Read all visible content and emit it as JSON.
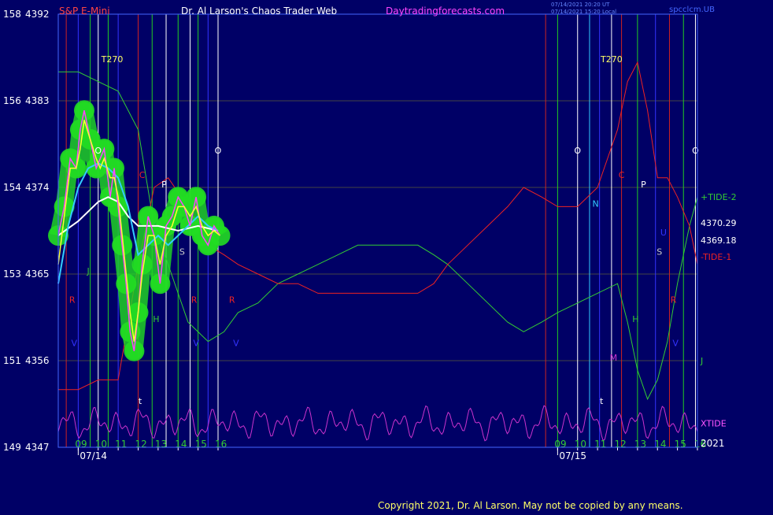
{
  "header": {
    "symbol": "S&P E-Mini",
    "title": "Dr. Al Larson's Chaos Trader Web",
    "site": "Daytradingforecasts.com",
    "timestamp1": "07/14/2021 20:20 UT",
    "timestamp2": "07/14/2021 15:20 Local",
    "file": "spcclcm.UB"
  },
  "footer": {
    "copyright": "Copyright 2021, Dr. Al Larson. May not be copied by any means."
  },
  "colors": {
    "background": "#000066",
    "price_ribbon": "#22dd22",
    "price_line": "#ff44ff",
    "fast_avg": "#ffff33",
    "mid_avg": "#33ccff",
    "slow_avg": "#ffffff",
    "tide_upper": "#33cc33",
    "tide_lower": "#ee2222",
    "xtide": "#cc33cc",
    "envelope": "#2222ff"
  },
  "chart_data": {
    "type": "line",
    "title": "S&P E-Mini",
    "y_axis_left_ticks": [
      "158",
      "156",
      "154",
      "153",
      "151",
      "149"
    ],
    "y_axis_price_ticks": [
      4392,
      4383,
      4374,
      4365,
      4356,
      4347
    ],
    "ylim": [
      4347,
      4392
    ],
    "x_tick_labels": [
      "09",
      "10",
      "11",
      "12",
      "13",
      "14",
      "15",
      "16",
      "09",
      "10",
      "11",
      "12",
      "13",
      "14",
      "15",
      "16"
    ],
    "x_ticks_hour": [
      9,
      10,
      11,
      12,
      13,
      14,
      15,
      16,
      33,
      34,
      35,
      36,
      37,
      38,
      39,
      40
    ],
    "date_labels": [
      "07/14",
      "07/15"
    ],
    "date_positions_hour": [
      9,
      33
    ],
    "year_label": "2021",
    "xlim_hour": [
      8.0,
      40.0
    ],
    "right_labels": [
      {
        "text": "+TIDE-2",
        "price": 4373,
        "color": "#33cc33"
      },
      {
        "text": "4370.29",
        "price": 4370.3,
        "color": "#ffffff"
      },
      {
        "text": "4369.18",
        "price": 4368.5,
        "color": "#ffffff"
      },
      {
        "text": "-TIDE-1",
        "price": 4366.8,
        "color": "#ee2222"
      },
      {
        "text": "J",
        "price": 4356,
        "color": "#33cc33"
      },
      {
        "text": "XTIDE",
        "price": 4349.5,
        "color": "#ff55ff"
      }
    ],
    "markers": [
      {
        "text": "T270",
        "hour": 10.7,
        "price": 4387,
        "color": "#ffff66"
      },
      {
        "text": "T270",
        "hour": 35.7,
        "price": 4387,
        "color": "#ffff66"
      },
      {
        "text": "O",
        "hour": 10.0,
        "price": 4377.5,
        "color": "#ffffff"
      },
      {
        "text": "O",
        "hour": 16.0,
        "price": 4377.5,
        "color": "#ffffff"
      },
      {
        "text": "O",
        "hour": 34.0,
        "price": 4377.5,
        "color": "#ffffff"
      },
      {
        "text": "O",
        "hour": 39.9,
        "price": 4377.5,
        "color": "#ffffff"
      },
      {
        "text": "C",
        "hour": 12.2,
        "price": 4375,
        "color": "#ee2222"
      },
      {
        "text": "C",
        "hour": 36.2,
        "price": 4375,
        "color": "#ee2222"
      },
      {
        "text": "P",
        "hour": 13.3,
        "price": 4374,
        "color": "#ffffff"
      },
      {
        "text": "P",
        "hour": 37.3,
        "price": 4374,
        "color": "#ffffff"
      },
      {
        "text": "N",
        "hour": 34.9,
        "price": 4372,
        "color": "#33ccff"
      },
      {
        "text": "U",
        "hour": 38.3,
        "price": 4369,
        "color": "#3333ff"
      },
      {
        "text": "S",
        "hour": 14.2,
        "price": 4367,
        "color": "#cccccc"
      },
      {
        "text": "S",
        "hour": 38.1,
        "price": 4367,
        "color": "#cccccc"
      },
      {
        "text": "J",
        "hour": 9.5,
        "price": 4365,
        "color": "#33cc33"
      },
      {
        "text": "R",
        "hour": 8.7,
        "price": 4362,
        "color": "#ee2222"
      },
      {
        "text": "R",
        "hour": 14.8,
        "price": 4362,
        "color": "#ee2222"
      },
      {
        "text": "R",
        "hour": 16.7,
        "price": 4362,
        "color": "#ee2222"
      },
      {
        "text": "R",
        "hour": 38.8,
        "price": 4362,
        "color": "#ee2222"
      },
      {
        "text": "H",
        "hour": 12.9,
        "price": 4360,
        "color": "#33cc33"
      },
      {
        "text": "H",
        "hour": 36.9,
        "price": 4360,
        "color": "#33cc33"
      },
      {
        "text": "V",
        "hour": 8.8,
        "price": 4357.5,
        "color": "#3333ff"
      },
      {
        "text": "V",
        "hour": 14.9,
        "price": 4357.5,
        "color": "#3333ff"
      },
      {
        "text": "V",
        "hour": 16.9,
        "price": 4357.5,
        "color": "#3333ff"
      },
      {
        "text": "V",
        "hour": 38.9,
        "price": 4357.5,
        "color": "#3333ff"
      },
      {
        "text": "M",
        "hour": 35.8,
        "price": 4356,
        "color": "#cc33cc"
      },
      {
        "text": "t",
        "hour": 12.1,
        "price": 4351.5,
        "color": "#ffffff"
      },
      {
        "text": "t",
        "hour": 35.2,
        "price": 4351.5,
        "color": "#ffffff"
      }
    ],
    "series": [
      {
        "type": "price",
        "x_hour": [
          8.0,
          8.3,
          8.6,
          8.9,
          9.1,
          9.3,
          9.6,
          9.9,
          10.1,
          10.3,
          10.6,
          10.8,
          11.0,
          11.2,
          11.4,
          11.6,
          11.8,
          12.0,
          12.2,
          12.5,
          12.8,
          13.1,
          13.4,
          13.7,
          14.0,
          14.3,
          14.6,
          14.9,
          15.2,
          15.5,
          15.8,
          16.1
        ],
        "values": [
          4369,
          4372,
          4377,
          4376,
          4380,
          4382,
          4379,
          4376,
          4377,
          4378,
          4373,
          4376,
          4372,
          4368,
          4364,
          4359,
          4357,
          4361,
          4366,
          4371,
          4369,
          4364,
          4370,
          4371,
          4373,
          4372,
          4370,
          4373,
          4369,
          4368,
          4370,
          4369
        ]
      },
      {
        "type": "fast_avg",
        "x_hour": [
          8.0,
          8.3,
          8.6,
          8.9,
          9.1,
          9.3,
          9.6,
          9.9,
          10.1,
          10.3,
          10.6,
          10.8,
          11.0,
          11.2,
          11.4,
          11.6,
          11.8,
          12.0,
          12.2,
          12.5,
          12.8,
          13.1,
          13.4,
          13.7,
          14.0,
          14.3,
          14.6,
          14.9,
          15.2,
          15.5,
          15.8,
          16.1
        ],
        "values": [
          4366,
          4371,
          4376,
          4376,
          4378,
          4381,
          4379,
          4377,
          4376,
          4377,
          4375,
          4375,
          4373,
          4369,
          4365,
          4361,
          4358,
          4361,
          4365,
          4369,
          4369,
          4366,
          4369,
          4370,
          4372,
          4372,
          4371,
          4372,
          4370,
          4369,
          4369.5,
          4369
        ]
      },
      {
        "type": "mid_avg",
        "x_hour": [
          8.0,
          8.5,
          9.0,
          9.5,
          10.0,
          10.5,
          11.0,
          11.5,
          12.0,
          12.5,
          13.0,
          13.5,
          14.0,
          14.5,
          15.0,
          15.5,
          16.0
        ],
        "values": [
          4364,
          4370,
          4374,
          4376,
          4376.5,
          4376,
          4375,
          4372,
          4367,
          4368,
          4369,
          4368,
          4369,
          4370,
          4371,
          4370,
          4369.5
        ]
      },
      {
        "type": "slow_avg",
        "x_hour": [
          8.0,
          9.0,
          10.0,
          10.5,
          11.0,
          11.5,
          12.0,
          13.0,
          14.0,
          15.0,
          16.0
        ],
        "values": [
          4369,
          4370.5,
          4372.5,
          4373,
          4372.5,
          4371,
          4370,
          4370,
          4369.5,
          4370,
          4369.5
        ]
      },
      {
        "type": "tide_upper",
        "x_hour": [
          8.0,
          9.0,
          10.0,
          11.0,
          12.0,
          12.8,
          13.5,
          14.5,
          15.5,
          16.3,
          17.0,
          18.0,
          19.0,
          20.0,
          21.0,
          22.0,
          23.0,
          24.0,
          25.0,
          26.0,
          26.8,
          27.5,
          28.5,
          29.5,
          30.5,
          31.3,
          32.2,
          33.0,
          34.0,
          35.0,
          36.0,
          36.5,
          37.0,
          37.5,
          38.0,
          38.5,
          39.0,
          39.6,
          40.0
        ],
        "values": [
          4386,
          4386,
          4385,
          4384,
          4380,
          4370,
          4366,
          4360,
          4358,
          4359,
          4361,
          4362,
          4364,
          4365,
          4366,
          4367,
          4368,
          4368,
          4368,
          4368,
          4367,
          4366,
          4364,
          4362,
          4360,
          4359,
          4360,
          4361,
          4362,
          4363,
          4364,
          4360,
          4355,
          4352,
          4354,
          4358,
          4364,
          4370,
          4373
        ]
      },
      {
        "type": "tide_lower",
        "x_hour": [
          8.0,
          9.0,
          10.0,
          11.0,
          12.0,
          12.8,
          13.5,
          14.5,
          15.5,
          16.3,
          17.0,
          18.0,
          19.0,
          20.0,
          21.0,
          22.0,
          23.0,
          24.0,
          25.0,
          26.0,
          26.8,
          27.5,
          28.5,
          29.5,
          30.5,
          31.3,
          32.2,
          33.0,
          34.0,
          35.0,
          36.0,
          36.5,
          37.0,
          37.5,
          38.0,
          38.5,
          39.0,
          39.6,
          40.0
        ],
        "values": [
          4353,
          4353,
          4354,
          4354,
          4366,
          4374,
          4375,
          4372,
          4368,
          4367,
          4366,
          4365,
          4364,
          4364,
          4363,
          4363,
          4363,
          4363,
          4363,
          4363,
          4364,
          4366,
          4368,
          4370,
          4372,
          4374,
          4373,
          4372,
          4372,
          4374,
          4380,
          4385,
          4387,
          4382,
          4375,
          4375,
          4373,
          4370,
          4366
        ]
      }
    ],
    "vertical_lines": [
      {
        "hour": 8.4,
        "color": "#cc2222"
      },
      {
        "hour": 9.0,
        "color": "#3333ff"
      },
      {
        "hour": 9.6,
        "color": "#22cc22"
      },
      {
        "hour": 10.0,
        "color": "#ffffff"
      },
      {
        "hour": 10.5,
        "color": "#22cc22"
      },
      {
        "hour": 11.0,
        "color": "#3333ff"
      },
      {
        "hour": 12.0,
        "color": "#cc2222"
      },
      {
        "hour": 12.7,
        "color": "#22cc22"
      },
      {
        "hour": 13.4,
        "color": "#ffffff"
      },
      {
        "hour": 14.0,
        "color": "#22cc22"
      },
      {
        "hour": 14.6,
        "color": "#ffffff"
      },
      {
        "hour": 15.0,
        "color": "#22cc22"
      },
      {
        "hour": 15.5,
        "color": "#3333ff"
      },
      {
        "hour": 16.0,
        "color": "#ffffff"
      },
      {
        "hour": 32.4,
        "color": "#cc2222"
      },
      {
        "hour": 33.0,
        "color": "#22cc22"
      },
      {
        "hour": 34.0,
        "color": "#ffffff"
      },
      {
        "hour": 34.6,
        "color": "#33ccff"
      },
      {
        "hour": 35.1,
        "color": "#3333ff"
      },
      {
        "hour": 35.7,
        "color": "#ffffff"
      },
      {
        "hour": 36.2,
        "color": "#cc2222"
      },
      {
        "hour": 37.0,
        "color": "#22cc22"
      },
      {
        "hour": 37.9,
        "color": "#3333ff"
      },
      {
        "hour": 38.6,
        "color": "#cc2222"
      },
      {
        "hour": 39.3,
        "color": "#22cc22"
      },
      {
        "hour": 39.9,
        "color": "#ffffff"
      }
    ]
  }
}
